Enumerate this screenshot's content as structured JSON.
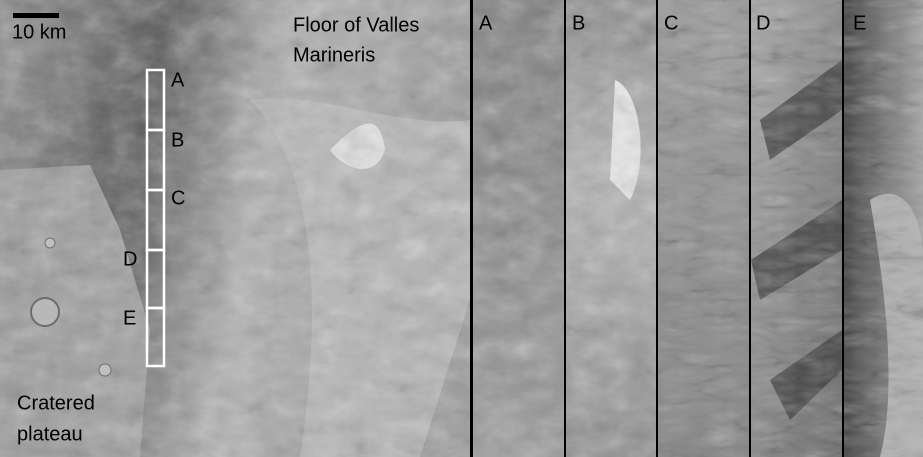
{
  "main_panel": {
    "scale_label": "10 km",
    "floor_label": [
      "Floor of Valles",
      "Marineris"
    ],
    "plateau_label": [
      "Cratered",
      "plateau"
    ],
    "box_labels": [
      "A",
      "B",
      "C",
      "D",
      "E"
    ]
  },
  "detail_panels": [
    {
      "label": "A"
    },
    {
      "label": "B"
    },
    {
      "label": "C"
    },
    {
      "label": "D"
    },
    {
      "label": "E"
    }
  ]
}
